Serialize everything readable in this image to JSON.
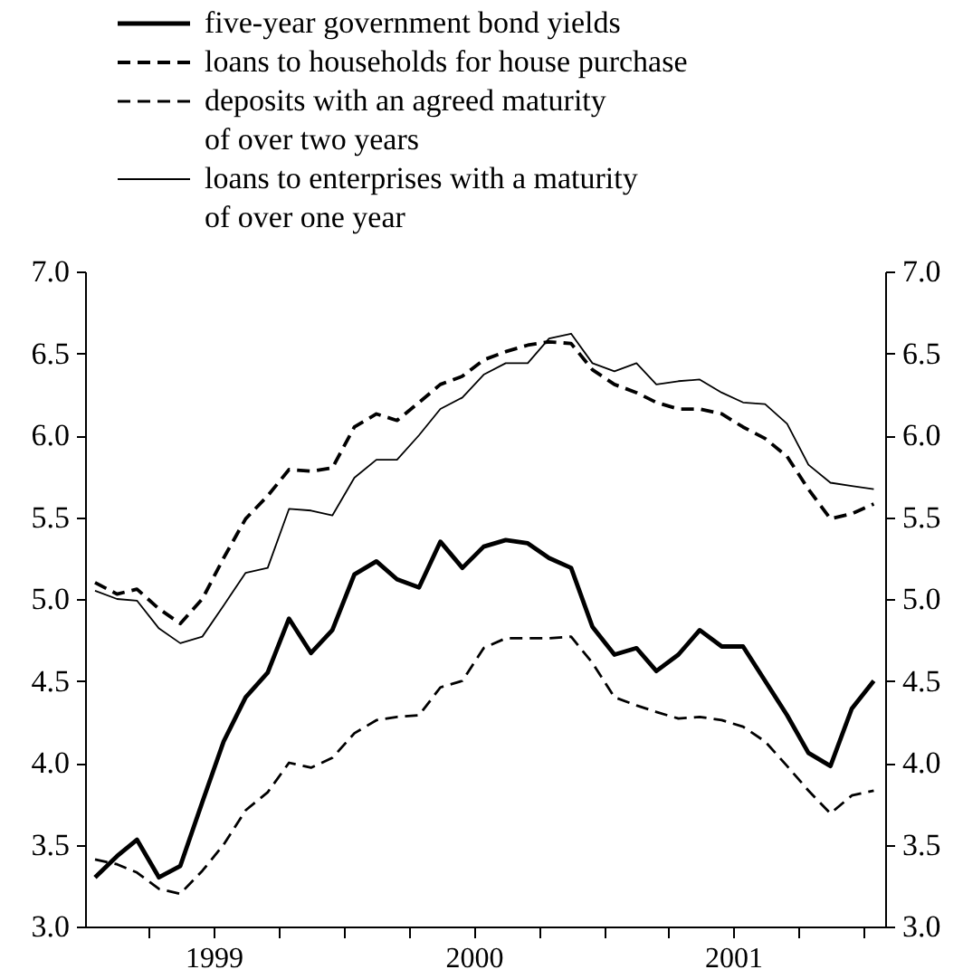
{
  "chart_data": {
    "type": "line",
    "x": [
      "1999-01-15",
      "1999-02-15",
      "1999-03-15",
      "1999-04-15",
      "1999-05-15",
      "1999-06-15",
      "1999-07-15",
      "1999-08-15",
      "1999-09-15",
      "1999-10-15",
      "1999-11-15",
      "1999-12-15",
      "2000-01-15",
      "2000-02-15",
      "2000-03-15",
      "2000-04-15",
      "2000-05-15",
      "2000-06-15",
      "2000-07-15",
      "2000-08-15",
      "2000-09-15",
      "2000-10-15",
      "2000-11-15",
      "2000-12-15",
      "2001-01-15",
      "2001-02-15",
      "2001-03-15",
      "2001-04-15",
      "2001-05-15",
      "2001-06-15",
      "2001-07-15",
      "2001-08-15",
      "2001-09-15",
      "2001-10-15",
      "2001-11-15",
      "2001-12-15",
      "2002-01-15"
    ],
    "series": [
      {
        "name": "five-year government bond yields",
        "color": "#000000",
        "line_style": "solid",
        "values": [
          3.3,
          3.43,
          3.53,
          3.3,
          3.37,
          3.76,
          4.13,
          4.4,
          4.55,
          4.88,
          4.67,
          4.81,
          5.15,
          5.23,
          5.12,
          5.07,
          5.35,
          5.19,
          5.32,
          5.36,
          5.34,
          5.25,
          5.19,
          4.83,
          4.66,
          4.7,
          4.56,
          4.66,
          4.81,
          4.71,
          4.71,
          4.5,
          4.29,
          4.06,
          3.98,
          4.33,
          4.5
        ]
      },
      {
        "name": "loans to households for house purchase",
        "color": "#000000",
        "line_style": "dashed",
        "values": [
          5.1,
          5.03,
          5.06,
          4.94,
          4.85,
          5.0,
          5.25,
          5.49,
          5.63,
          5.79,
          5.78,
          5.8,
          6.05,
          6.13,
          6.09,
          6.2,
          6.31,
          6.36,
          6.46,
          6.51,
          6.55,
          6.57,
          6.56,
          6.4,
          6.31,
          6.26,
          6.2,
          6.16,
          6.16,
          6.13,
          6.05,
          5.98,
          5.87,
          5.67,
          5.49,
          5.52,
          5.58
        ]
      },
      {
        "name": "deposits with an agreed maturity\nof over two years",
        "color": "#000000",
        "line_style": "dashed",
        "values": [
          3.41,
          3.38,
          3.33,
          3.23,
          3.2,
          3.34,
          3.5,
          3.71,
          3.82,
          4.0,
          3.97,
          4.03,
          4.18,
          4.26,
          4.28,
          4.29,
          4.46,
          4.5,
          4.7,
          4.76,
          4.76,
          4.76,
          4.77,
          4.61,
          4.4,
          4.35,
          4.31,
          4.27,
          4.28,
          4.26,
          4.22,
          4.13,
          3.98,
          3.83,
          3.69,
          3.8,
          3.83
        ]
      },
      {
        "name": "loans to enterprises with a maturity\nof over one year",
        "color": "#000000",
        "line_style": "solid",
        "values": [
          5.05,
          5.0,
          4.99,
          4.82,
          4.73,
          4.77,
          4.96,
          5.16,
          5.19,
          5.55,
          5.54,
          5.51,
          5.74,
          5.85,
          5.85,
          6.0,
          6.16,
          6.23,
          6.37,
          6.44,
          6.44,
          6.59,
          6.62,
          6.44,
          6.39,
          6.44,
          6.31,
          6.33,
          6.34,
          6.26,
          6.2,
          6.19,
          6.07,
          5.82,
          5.71,
          5.69,
          5.67
        ]
      }
    ],
    "xlim": [
      "1999-01-01",
      "2002-01-31"
    ],
    "xticks": [
      {
        "value": "1999-04-01",
        "label": null
      },
      {
        "value": "1999-07-01",
        "label": "1999"
      },
      {
        "value": "1999-10-01",
        "label": null
      },
      {
        "value": "2000-01-01",
        "label": null
      },
      {
        "value": "2000-04-01",
        "label": null
      },
      {
        "value": "2000-07-01",
        "label": "2000"
      },
      {
        "value": "2000-10-01",
        "label": null
      },
      {
        "value": "2001-01-01",
        "label": null
      },
      {
        "value": "2001-04-01",
        "label": null
      },
      {
        "value": "2001-07-01",
        "label": "2001"
      },
      {
        "value": "2001-10-01",
        "label": null
      },
      {
        "value": "2002-01-01",
        "label": null
      }
    ],
    "ylim": [
      3,
      7
    ],
    "yticks": [
      {
        "value": 3,
        "label": "3.0"
      },
      {
        "value": 3.5,
        "label": "3.5"
      },
      {
        "value": 4,
        "label": "4.0"
      },
      {
        "value": 4.5,
        "label": "4.5"
      },
      {
        "value": 5,
        "label": "5.0"
      },
      {
        "value": 5.5,
        "label": "5.5"
      },
      {
        "value": 6,
        "label": "6.0"
      },
      {
        "value": 6.5,
        "label": "6.5"
      },
      {
        "value": 7,
        "label": "7.0"
      }
    ],
    "y2lim": [
      3,
      7
    ],
    "y2ticks": [
      {
        "value": 3,
        "label": "3.0"
      },
      {
        "value": 3.5,
        "label": "3.5"
      },
      {
        "value": 4,
        "label": "4.0"
      },
      {
        "value": 4.5,
        "label": "4.5"
      },
      {
        "value": 5,
        "label": "5.0"
      },
      {
        "value": 5.5,
        "label": "5.5"
      },
      {
        "value": 6,
        "label": "6.0"
      },
      {
        "value": 6.5,
        "label": "6.5"
      },
      {
        "value": 7,
        "label": "7.0"
      }
    ],
    "grid": false,
    "legend": "top left",
    "marker": "none"
  }
}
